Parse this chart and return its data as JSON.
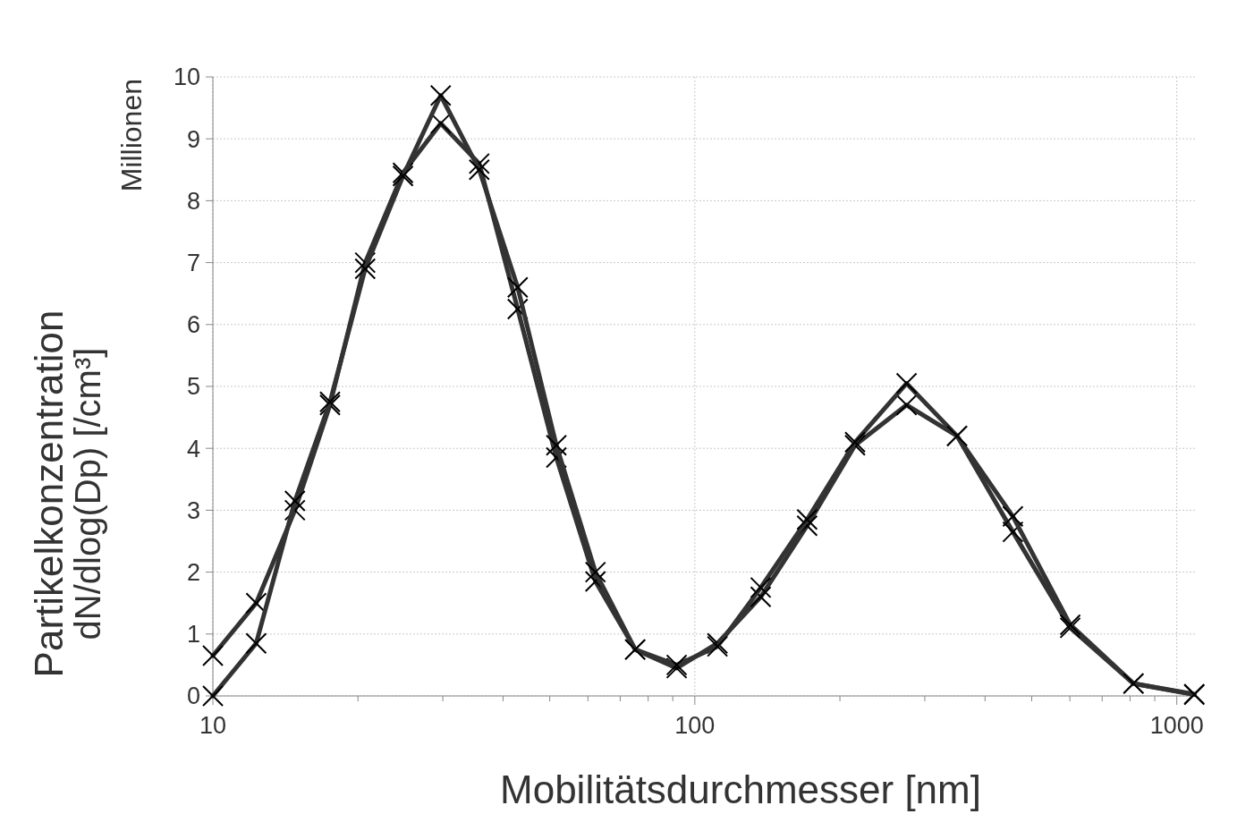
{
  "chart_data": {
    "type": "line",
    "xlabel": "Mobilitätsdurchmesser [nm]",
    "ylabel": "Partikelkonzentration\ndN/dlog(Dp) [/cm³]",
    "annotations": [
      "Millionen"
    ],
    "log": "x",
    "grid": true,
    "line_style": "solid",
    "xlim": [
      10,
      1100
    ],
    "ylim": [
      0,
      10
    ],
    "xticks": [
      10,
      {
        "value": 20,
        "label": null
      },
      {
        "value": 30,
        "label": null
      },
      {
        "value": 40,
        "label": null
      },
      {
        "value": 50,
        "label": null
      },
      {
        "value": 60,
        "label": null
      },
      {
        "value": 70,
        "label": null
      },
      {
        "value": 80,
        "label": null
      },
      {
        "value": 90,
        "label": null
      },
      100,
      {
        "value": 200,
        "label": null
      },
      {
        "value": 300,
        "label": null
      },
      {
        "value": 400,
        "label": null
      },
      {
        "value": 500,
        "label": null
      },
      {
        "value": 600,
        "label": null
      },
      {
        "value": 700,
        "label": null
      },
      {
        "value": 800,
        "label": null
      },
      {
        "value": 900,
        "label": null
      },
      1000
    ],
    "yticks": [
      0,
      1,
      2,
      3,
      4,
      5,
      6,
      7,
      8,
      9,
      10
    ],
    "x": [
      10,
      12.3,
      14.8,
      17.5,
      20.7,
      24.8,
      29.7,
      35.7,
      42.9,
      51.6,
      62.2,
      75.2,
      91.7,
      111.4,
      137,
      171,
      215,
      275,
      350,
      457,
      601,
      813,
      1087
    ],
    "series": [
      {
        "color": "#333333",
        "marker": "cross",
        "values": [
          0.65,
          1.5,
          3.0,
          4.7,
          7.0,
          8.45,
          9.25,
          8.6,
          6.25,
          3.85,
          1.85,
          0.75,
          0.45,
          0.85,
          1.6,
          2.75,
          4.05,
          4.7,
          4.2,
          2.65,
          1.1,
          0.2,
          0.03
        ]
      },
      {
        "color": "#333333",
        "marker": "cross",
        "values": [
          0,
          0.85,
          3.15,
          4.75,
          6.9,
          8.4,
          9.7,
          8.5,
          6.6,
          4.05,
          2.0,
          0.75,
          0.5,
          0.8,
          1.75,
          2.85,
          4.1,
          5.05,
          4.2,
          2.9,
          1.15,
          0.2,
          0.02
        ]
      }
    ]
  }
}
